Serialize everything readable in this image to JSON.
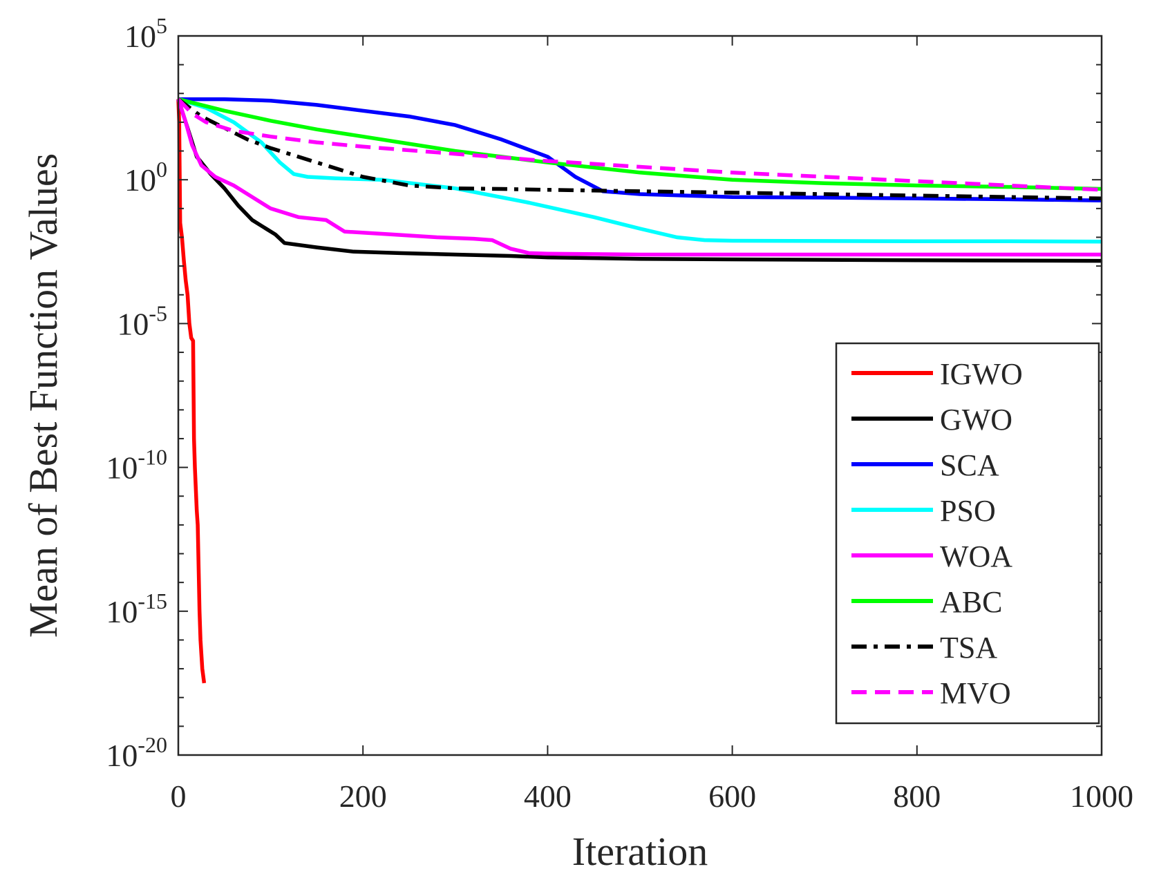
{
  "chart_data": {
    "type": "line",
    "title": "",
    "xlabel": "Iteration",
    "ylabel": "Mean of Best Function Values",
    "xlim": [
      0,
      1000
    ],
    "ylim_log10": [
      -20,
      5
    ],
    "yscale": "log",
    "grid": false,
    "legend_position": "right-lower",
    "x_ticks": [
      {
        "value": 0,
        "label": "0"
      },
      {
        "value": 200,
        "label": "200"
      },
      {
        "value": 400,
        "label": "400"
      },
      {
        "value": 600,
        "label": "600"
      },
      {
        "value": 800,
        "label": "800"
      },
      {
        "value": 1000,
        "label": "1000"
      }
    ],
    "y_ticks": [
      {
        "exp": 5,
        "base": "10",
        "sup": "5"
      },
      {
        "exp": 0,
        "base": "10",
        "sup": "0"
      },
      {
        "exp": -5,
        "base": "10",
        "sup": "-5"
      },
      {
        "exp": -10,
        "base": "10",
        "sup": "-10"
      },
      {
        "exp": -15,
        "base": "10",
        "sup": "-15"
      },
      {
        "exp": -20,
        "base": "10",
        "sup": "-20"
      }
    ],
    "series": [
      {
        "name": "IGWO",
        "color": "#ff0000",
        "dash": "solid",
        "x": [
          0,
          1,
          2,
          4,
          6,
          8,
          10,
          12,
          14,
          16,
          17,
          18,
          20,
          21,
          22,
          23,
          24,
          25,
          26,
          28
        ],
        "log10_y": [
          2.8,
          2.0,
          -1.5,
          -2.0,
          -2.8,
          -3.5,
          -4.0,
          -5.0,
          -5.5,
          -5.6,
          -9.0,
          -10.0,
          -11.5,
          -12.0,
          -13.5,
          -15.0,
          -16.0,
          -16.5,
          -17.0,
          -17.5
        ]
      },
      {
        "name": "GWO",
        "color": "#000000",
        "dash": "solid",
        "x": [
          0,
          10,
          20,
          35,
          50,
          65,
          80,
          95,
          105,
          115,
          150,
          190,
          240,
          300,
          360,
          400,
          500,
          600,
          800,
          1000
        ],
        "log10_y": [
          2.8,
          1.8,
          0.8,
          0.2,
          -0.3,
          -0.9,
          -1.4,
          -1.7,
          -1.9,
          -2.2,
          -2.35,
          -2.5,
          -2.55,
          -2.6,
          -2.65,
          -2.7,
          -2.75,
          -2.77,
          -2.8,
          -2.82
        ]
      },
      {
        "name": "SCA",
        "color": "#0000ff",
        "dash": "solid",
        "x": [
          0,
          50,
          100,
          150,
          200,
          250,
          300,
          350,
          400,
          430,
          460,
          500,
          550,
          600,
          700,
          800,
          900,
          1000
        ],
        "log10_y": [
          2.8,
          2.8,
          2.75,
          2.6,
          2.4,
          2.2,
          1.9,
          1.4,
          0.8,
          0.1,
          -0.4,
          -0.5,
          -0.55,
          -0.6,
          -0.62,
          -0.65,
          -0.68,
          -0.72
        ]
      },
      {
        "name": "PSO",
        "color": "#00ffff",
        "dash": "solid",
        "x": [
          0,
          30,
          60,
          90,
          110,
          125,
          140,
          170,
          220,
          300,
          380,
          450,
          500,
          540,
          570,
          600,
          700,
          800,
          900,
          1000
        ],
        "log10_y": [
          2.8,
          2.5,
          2.0,
          1.3,
          0.6,
          0.2,
          0.1,
          0.05,
          0.0,
          -0.3,
          -0.8,
          -1.3,
          -1.7,
          -2.0,
          -2.1,
          -2.12,
          -2.13,
          -2.14,
          -2.14,
          -2.15
        ]
      },
      {
        "name": "WOA",
        "color": "#ff00ff",
        "dash": "solid",
        "x": [
          0,
          8,
          15,
          25,
          40,
          60,
          80,
          100,
          130,
          160,
          180,
          230,
          280,
          320,
          340,
          360,
          380,
          400,
          500,
          600,
          800,
          1000
        ],
        "log10_y": [
          2.8,
          2.0,
          1.2,
          0.5,
          0.1,
          -0.2,
          -0.6,
          -1.0,
          -1.3,
          -1.4,
          -1.8,
          -1.9,
          -2.0,
          -2.05,
          -2.1,
          -2.4,
          -2.55,
          -2.57,
          -2.6,
          -2.6,
          -2.6,
          -2.6
        ]
      },
      {
        "name": "ABC",
        "color": "#00ff00",
        "dash": "solid",
        "x": [
          0,
          50,
          100,
          150,
          200,
          300,
          400,
          500,
          600,
          700,
          800,
          900,
          1000
        ],
        "log10_y": [
          2.8,
          2.4,
          2.05,
          1.75,
          1.5,
          1.0,
          0.6,
          0.25,
          0.0,
          -0.12,
          -0.2,
          -0.25,
          -0.32
        ]
      },
      {
        "name": "TSA",
        "color": "#000000",
        "dash": "dashdot",
        "x": [
          0,
          25,
          50,
          75,
          100,
          150,
          200,
          250,
          300,
          350,
          400,
          500,
          600,
          700,
          800,
          900,
          1000
        ],
        "log10_y": [
          2.8,
          2.2,
          1.8,
          1.4,
          1.1,
          0.6,
          0.1,
          -0.2,
          -0.3,
          -0.32,
          -0.35,
          -0.4,
          -0.45,
          -0.5,
          -0.55,
          -0.6,
          -0.65
        ]
      },
      {
        "name": "MVO",
        "color": "#ff00ff",
        "dash": "dashed",
        "x": [
          0,
          15,
          30,
          60,
          100,
          150,
          200,
          300,
          400,
          500,
          600,
          700,
          800,
          900,
          1000
        ],
        "log10_y": [
          2.8,
          2.3,
          2.0,
          1.7,
          1.5,
          1.3,
          1.15,
          0.9,
          0.65,
          0.45,
          0.25,
          0.1,
          -0.05,
          -0.2,
          -0.35
        ]
      }
    ]
  }
}
